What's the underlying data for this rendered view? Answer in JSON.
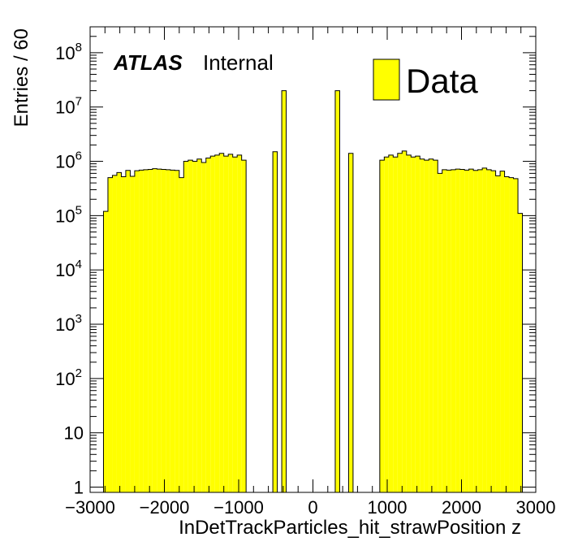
{
  "chart_data": {
    "type": "bar",
    "subtype": "histogram",
    "xlabel": "InDetTrackParticles_hit_strawPosition z",
    "ylabel": "Entries / 60",
    "xlim": [
      -3000,
      3000
    ],
    "ylim": [
      0.8,
      300000000
    ],
    "yscale": "log",
    "bin_width": 60,
    "x_ticks": [
      -3000,
      -2000,
      -1000,
      0,
      1000,
      2000,
      3000
    ],
    "x_tick_labels": [
      "−3000",
      "−2000",
      "−1000",
      "0",
      "1000",
      "2000",
      "3000"
    ],
    "y_ticks": [
      {
        "value": 1,
        "base": "1",
        "exp": ""
      },
      {
        "value": 10,
        "base": "10",
        "exp": ""
      },
      {
        "value": 100,
        "base": "10",
        "exp": "2"
      },
      {
        "value": 1000,
        "base": "10",
        "exp": "3"
      },
      {
        "value": 10000,
        "base": "10",
        "exp": "4"
      },
      {
        "value": 100000,
        "base": "10",
        "exp": "5"
      },
      {
        "value": 1000000,
        "base": "10",
        "exp": "6"
      },
      {
        "value": 10000000,
        "base": "10",
        "exp": "7"
      },
      {
        "value": 100000000,
        "base": "10",
        "exp": "8"
      }
    ],
    "label_main": "ATLAS",
    "label_sub": "Internal",
    "series": [
      {
        "name": "Data",
        "color": "#ffff00",
        "bins": [
          {
            "x_low": -2820,
            "value": 120000
          },
          {
            "x_low": -2760,
            "value": 500000
          },
          {
            "x_low": -2700,
            "value": 550000
          },
          {
            "x_low": -2640,
            "value": 620000
          },
          {
            "x_low": -2580,
            "value": 520000
          },
          {
            "x_low": -2520,
            "value": 680000
          },
          {
            "x_low": -2460,
            "value": 530000
          },
          {
            "x_low": -2400,
            "value": 670000
          },
          {
            "x_low": -2340,
            "value": 690000
          },
          {
            "x_low": -2280,
            "value": 700000
          },
          {
            "x_low": -2220,
            "value": 710000
          },
          {
            "x_low": -2160,
            "value": 730000
          },
          {
            "x_low": -2100,
            "value": 720000
          },
          {
            "x_low": -2040,
            "value": 710000
          },
          {
            "x_low": -1980,
            "value": 700000
          },
          {
            "x_low": -1920,
            "value": 690000
          },
          {
            "x_low": -1860,
            "value": 680000
          },
          {
            "x_low": -1800,
            "value": 500000
          },
          {
            "x_low": -1740,
            "value": 1000000
          },
          {
            "x_low": -1680,
            "value": 1050000
          },
          {
            "x_low": -1620,
            "value": 1000000
          },
          {
            "x_low": -1560,
            "value": 1100000
          },
          {
            "x_low": -1500,
            "value": 950000
          },
          {
            "x_low": -1440,
            "value": 1150000
          },
          {
            "x_low": -1380,
            "value": 1250000
          },
          {
            "x_low": -1320,
            "value": 1300000
          },
          {
            "x_low": -1260,
            "value": 1400000
          },
          {
            "x_low": -1200,
            "value": 1250000
          },
          {
            "x_low": -1140,
            "value": 1350000
          },
          {
            "x_low": -1080,
            "value": 1200000
          },
          {
            "x_low": -1020,
            "value": 1300000
          },
          {
            "x_low": -960,
            "value": 1050000
          },
          {
            "x_low": -540,
            "value": 1500000
          },
          {
            "x_low": -420,
            "value": 20000000
          },
          {
            "x_low": 300,
            "value": 20000000
          },
          {
            "x_low": 480,
            "value": 1400000
          },
          {
            "x_low": 900,
            "value": 1050000
          },
          {
            "x_low": 960,
            "value": 1200000
          },
          {
            "x_low": 1020,
            "value": 1300000
          },
          {
            "x_low": 1080,
            "value": 1200000
          },
          {
            "x_low": 1140,
            "value": 1400000
          },
          {
            "x_low": 1200,
            "value": 1550000
          },
          {
            "x_low": 1260,
            "value": 1300000
          },
          {
            "x_low": 1320,
            "value": 1200000
          },
          {
            "x_low": 1380,
            "value": 1250000
          },
          {
            "x_low": 1440,
            "value": 1100000
          },
          {
            "x_low": 1500,
            "value": 1050000
          },
          {
            "x_low": 1560,
            "value": 1100000
          },
          {
            "x_low": 1620,
            "value": 1050000
          },
          {
            "x_low": 1680,
            "value": 600000
          },
          {
            "x_low": 1740,
            "value": 700000
          },
          {
            "x_low": 1800,
            "value": 690000
          },
          {
            "x_low": 1860,
            "value": 700000
          },
          {
            "x_low": 1920,
            "value": 720000
          },
          {
            "x_low": 1980,
            "value": 710000
          },
          {
            "x_low": 2040,
            "value": 690000
          },
          {
            "x_low": 2100,
            "value": 720000
          },
          {
            "x_low": 2160,
            "value": 680000
          },
          {
            "x_low": 2220,
            "value": 700000
          },
          {
            "x_low": 2280,
            "value": 750000
          },
          {
            "x_low": 2340,
            "value": 700000
          },
          {
            "x_low": 2400,
            "value": 670000
          },
          {
            "x_low": 2460,
            "value": 540000
          },
          {
            "x_low": 2520,
            "value": 660000
          },
          {
            "x_low": 2580,
            "value": 520000
          },
          {
            "x_low": 2640,
            "value": 500000
          },
          {
            "x_low": 2700,
            "value": 480000
          },
          {
            "x_low": 2760,
            "value": 110000
          }
        ]
      }
    ],
    "legend": {
      "label": "Data",
      "position": "top-right"
    }
  }
}
